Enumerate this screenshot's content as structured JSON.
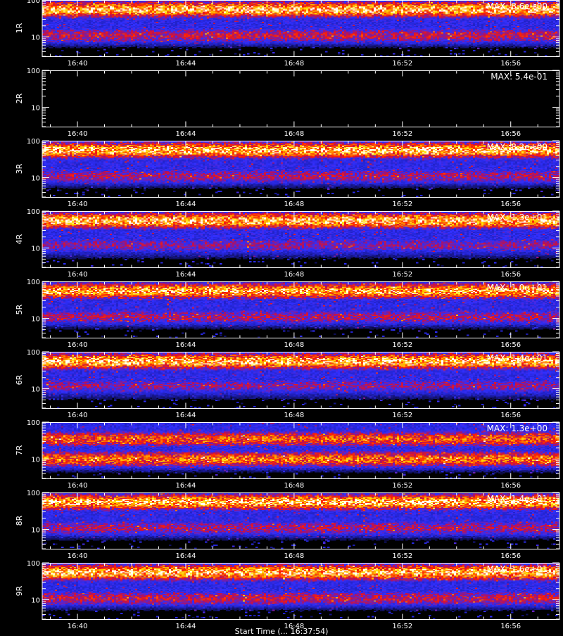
{
  "chart_data": {
    "type": "heatmap",
    "x_tick_labels": [
      "16:40",
      "16:44",
      "16:48",
      "16:52",
      "16:56"
    ],
    "x_ticks_minutes": [
      40,
      44,
      48,
      52,
      56
    ],
    "x_range_minutes": [
      38.7,
      57.8
    ],
    "y_scale": "log",
    "y_range": [
      3,
      100
    ],
    "y_tick_labels": [
      "10",
      "100"
    ],
    "xlabel": "Start Time (... 16:37:54)",
    "colormap": [
      "#000000",
      "#2020c0",
      "#3030ff",
      "#b01060",
      "#ff2000",
      "#ff8000",
      "#ffe000",
      "#ffffff"
    ],
    "panels": [
      {
        "label": "1R",
        "max_label": "MAX: 8.6e+00",
        "max": 8.6,
        "band_centers": [
          55,
          11
        ],
        "band_strength": [
          1.0,
          0.55
        ],
        "active": true
      },
      {
        "label": "2R",
        "max_label": "MAX: 5.4e-01",
        "max": 0.54,
        "band_centers": [],
        "band_strength": [],
        "active": false
      },
      {
        "label": "3R",
        "max_label": "MAX: 8.2e+00",
        "max": 8.2,
        "band_centers": [
          55,
          11
        ],
        "band_strength": [
          1.0,
          0.5
        ],
        "active": true
      },
      {
        "label": "4R",
        "max_label": "MAX: 1.3e+01",
        "max": 13.0,
        "band_centers": [
          55,
          12
        ],
        "band_strength": [
          1.0,
          0.45
        ],
        "active": true
      },
      {
        "label": "5R",
        "max_label": "MAX: 1.0e+01",
        "max": 10.0,
        "band_centers": [
          55,
          11
        ],
        "band_strength": [
          0.95,
          0.5
        ],
        "active": true
      },
      {
        "label": "6R",
        "max_label": "MAX: 1.4e+01",
        "max": 14.0,
        "band_centers": [
          55,
          12
        ],
        "band_strength": [
          1.0,
          0.45
        ],
        "active": true
      },
      {
        "label": "7R",
        "max_label": "MAX: 1.3e+00",
        "max": 1.3,
        "band_centers": [
          35,
          10
        ],
        "band_strength": [
          0.75,
          0.8
        ],
        "active": true
      },
      {
        "label": "8R",
        "max_label": "MAX: 1.4e+01",
        "max": 14.0,
        "band_centers": [
          55,
          11
        ],
        "band_strength": [
          1.0,
          0.5
        ],
        "active": true
      },
      {
        "label": "9R",
        "max_label": "MAX: 1.6e+01",
        "max": 16.0,
        "band_centers": [
          55,
          11
        ],
        "band_strength": [
          1.0,
          0.55
        ],
        "active": true
      }
    ]
  }
}
